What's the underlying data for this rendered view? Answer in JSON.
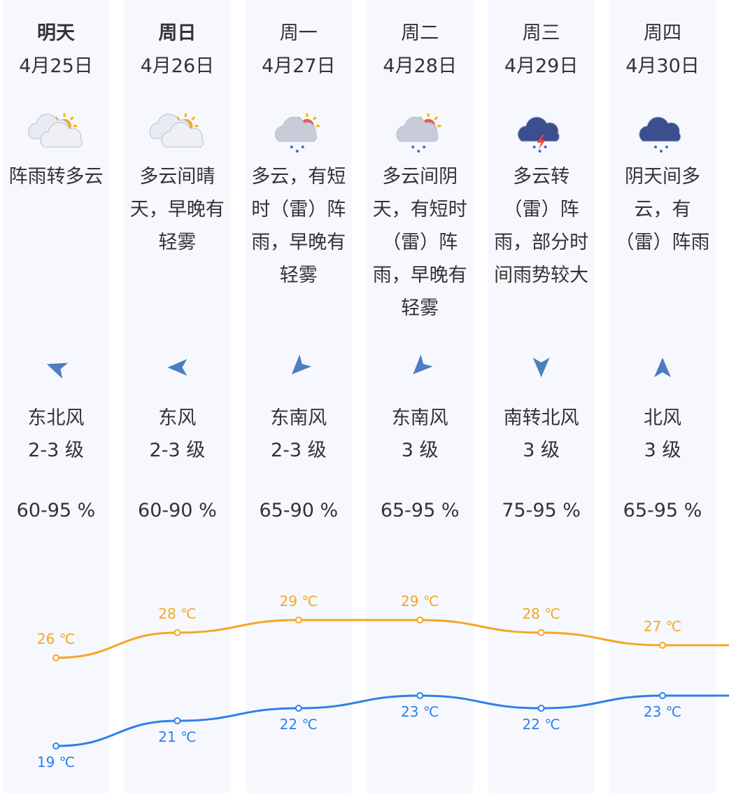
{
  "days": [
    {
      "day": "明天",
      "date": "4月25日",
      "weather": "阵雨转多云",
      "wind": "东北风",
      "level": "2-3 级",
      "humidity": "60-95 %",
      "high": {
        "value": 26,
        "label": "26 ℃"
      },
      "low": {
        "value": 19,
        "label": "19 ℃"
      }
    },
    {
      "day": "周日",
      "date": "4月26日",
      "weather": "多云间晴天，早晚有轻雾",
      "wind": "东风",
      "level": "2-3 级",
      "humidity": "60-90 %",
      "high": {
        "value": 28,
        "label": "28 ℃"
      },
      "low": {
        "value": 21,
        "label": "21 ℃"
      }
    },
    {
      "day": "周一",
      "date": "4月27日",
      "weather": "多云，有短时（雷）阵雨，早晚有轻雾",
      "wind": "东南风",
      "level": "2-3 级",
      "humidity": "65-90 %",
      "high": {
        "value": 29,
        "label": "29 ℃"
      },
      "low": {
        "value": 22,
        "label": "22 ℃"
      }
    },
    {
      "day": "周二",
      "date": "4月28日",
      "weather": "多云间阴天，有短时（雷）阵雨，早晚有轻雾",
      "wind": "东南风",
      "level": "3 级",
      "humidity": "65-95 %",
      "high": {
        "value": 29,
        "label": "29 ℃"
      },
      "low": {
        "value": 23,
        "label": "23 ℃"
      }
    },
    {
      "day": "周三",
      "date": "4月29日",
      "weather": "多云转（雷）阵雨，部分时间雨势较大",
      "wind": "南转北风",
      "level": "3 级",
      "humidity": "75-95 %",
      "high": {
        "value": 28,
        "label": "28 ℃"
      },
      "low": {
        "value": 22,
        "label": "22 ℃"
      }
    },
    {
      "day": "周四",
      "date": "4月30日",
      "weather": "阴天间多云，有（雷）阵雨",
      "wind": "北风",
      "level": "3 级",
      "humidity": "65-95 %",
      "high": {
        "value": 27,
        "label": "27 ℃"
      },
      "low": {
        "value": 23,
        "label": "23 ℃"
      }
    }
  ]
}
